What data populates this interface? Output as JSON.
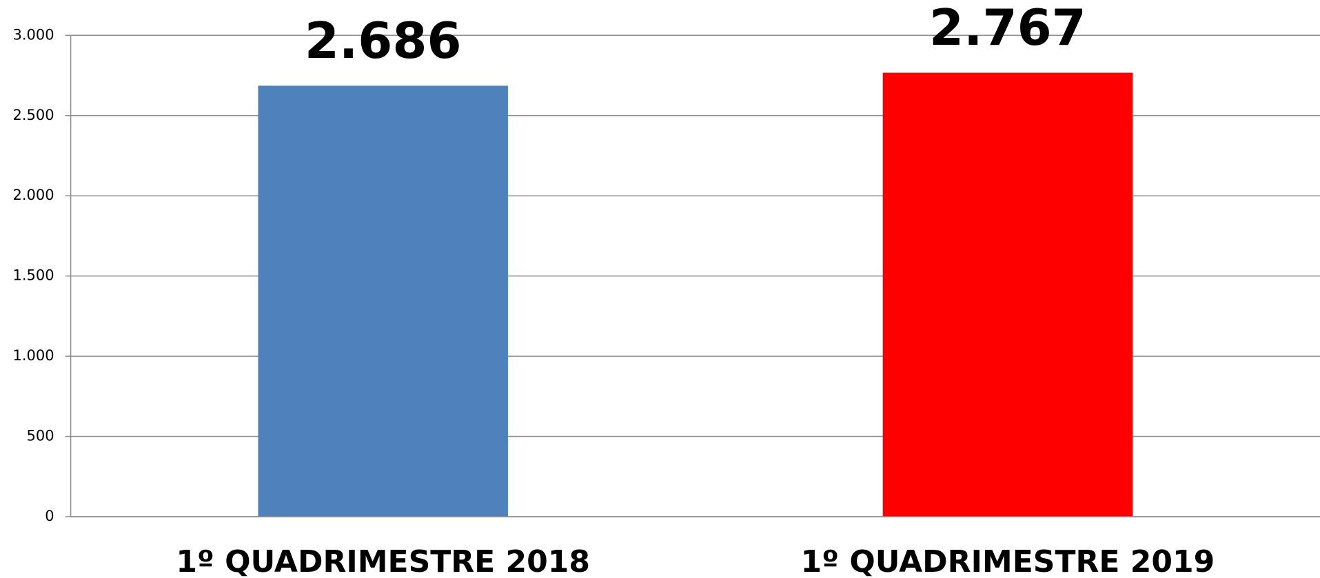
{
  "chart_data": {
    "type": "bar",
    "categories": [
      "1º QUADRIMESTRE 2018",
      "1º QUADRIMESTRE 2019"
    ],
    "values": [
      2686,
      2767
    ],
    "value_labels": [
      "2.686",
      "2.767"
    ],
    "colors": [
      "#4f81bd",
      "#ff0000"
    ],
    "ylim": [
      0,
      3000
    ],
    "yticks": [
      0,
      {
        "value": 500,
        "label": "500"
      },
      {
        "value": 1000,
        "label": "1.000"
      },
      {
        "value": 1500,
        "label": "1.500"
      },
      {
        "value": 2000,
        "label": "2.000"
      },
      {
        "value": 2500,
        "label": "2.500"
      },
      {
        "value": 3000,
        "label": "3.000"
      }
    ],
    "grid": true
  }
}
